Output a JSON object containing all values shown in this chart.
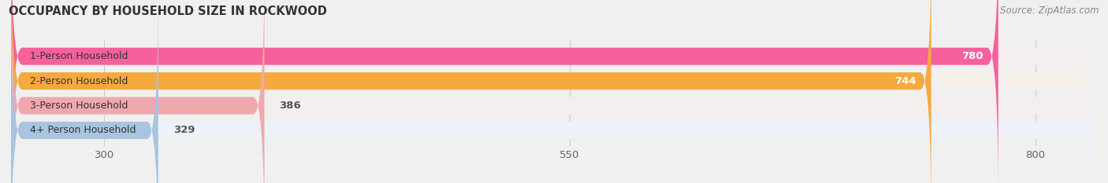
{
  "title": "OCCUPANCY BY HOUSEHOLD SIZE IN ROCKWOOD",
  "source": "Source: ZipAtlas.com",
  "categories": [
    "1-Person Household",
    "2-Person Household",
    "3-Person Household",
    "4+ Person Household"
  ],
  "values": [
    780,
    744,
    386,
    329
  ],
  "bar_colors": [
    "#F7619B",
    "#F5A93E",
    "#F0A8AE",
    "#A8C4E0"
  ],
  "bar_bg_colors": [
    "#F5EEF0",
    "#F5F0EC",
    "#F5EEEE",
    "#EEF2F8"
  ],
  "label_inside_threshold": 500,
  "label_inside_color": "#ffffff",
  "label_outside_color": "#555555",
  "xlim": [
    250,
    830
  ],
  "xticks": [
    300,
    550,
    800
  ],
  "title_fontsize": 10.5,
  "source_fontsize": 8.5,
  "tick_fontsize": 9.5,
  "bar_label_fontsize": 9.5,
  "category_fontsize": 9,
  "bar_height": 0.7,
  "background_color": "#f0f0f0"
}
